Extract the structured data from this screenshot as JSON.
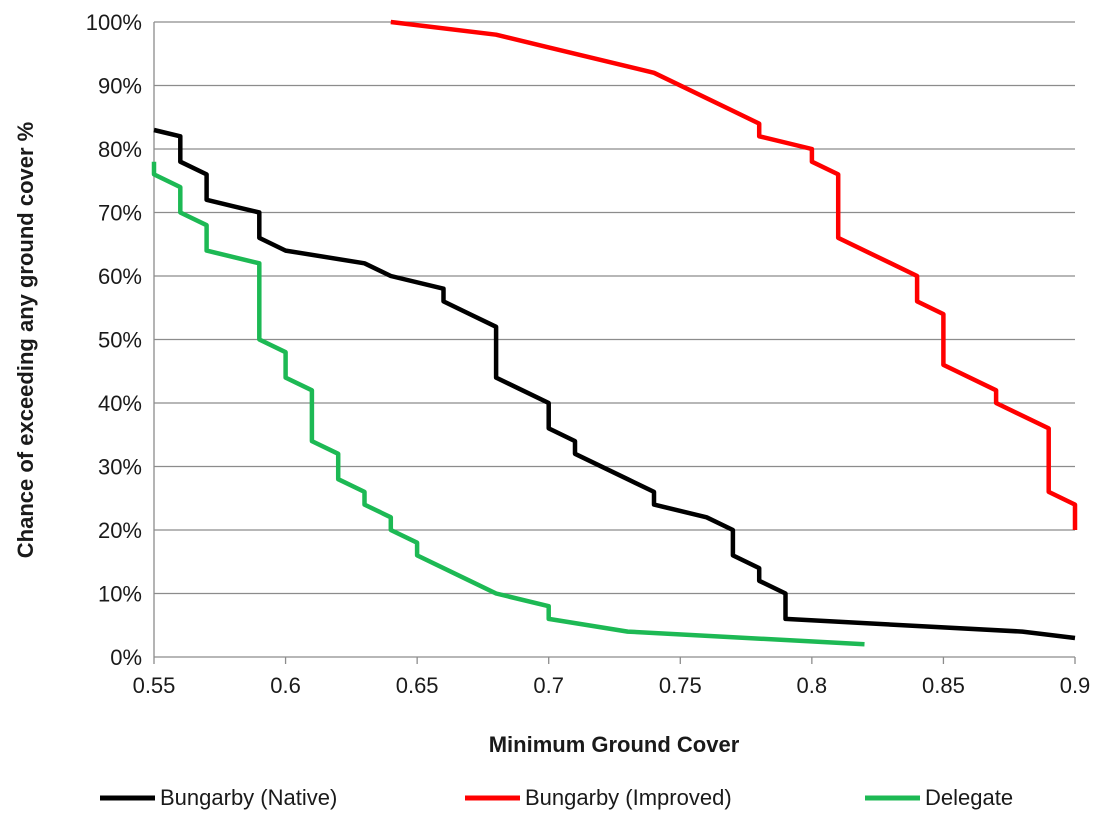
{
  "chart_data": {
    "type": "line",
    "title": "",
    "xlabel": "Minimum Ground Cover",
    "ylabel": "Chance of exceeding any ground cover %",
    "xlim": [
      0.55,
      0.9
    ],
    "ylim": [
      0,
      100
    ],
    "x_ticks": [
      0.55,
      0.6,
      0.65,
      0.7,
      0.75,
      0.8,
      0.85,
      0.9
    ],
    "x_tick_labels": [
      "0.55",
      "0.6",
      "0.65",
      "0.7",
      "0.75",
      "0.8",
      "0.85",
      "0.9"
    ],
    "y_ticks": [
      0,
      10,
      20,
      30,
      40,
      50,
      60,
      70,
      80,
      90,
      100
    ],
    "y_tick_labels": [
      "0%",
      "10%",
      "20%",
      "30%",
      "40%",
      "50%",
      "60%",
      "70%",
      "80%",
      "90%",
      "100%"
    ],
    "grid": "horizontal",
    "legend_position": "bottom",
    "series": [
      {
        "name": "Bungarby (Native)",
        "color": "#000000",
        "points": [
          [
            0.55,
            83
          ],
          [
            0.56,
            82
          ],
          [
            0.56,
            78
          ],
          [
            0.57,
            76
          ],
          [
            0.57,
            72
          ],
          [
            0.58,
            71
          ],
          [
            0.59,
            70
          ],
          [
            0.59,
            66
          ],
          [
            0.6,
            64
          ],
          [
            0.63,
            62
          ],
          [
            0.64,
            60
          ],
          [
            0.66,
            58
          ],
          [
            0.66,
            56
          ],
          [
            0.67,
            54
          ],
          [
            0.68,
            52
          ],
          [
            0.68,
            44
          ],
          [
            0.69,
            42
          ],
          [
            0.7,
            40
          ],
          [
            0.7,
            36
          ],
          [
            0.71,
            34
          ],
          [
            0.71,
            32
          ],
          [
            0.73,
            28
          ],
          [
            0.74,
            26
          ],
          [
            0.74,
            24
          ],
          [
            0.75,
            23
          ],
          [
            0.76,
            22
          ],
          [
            0.77,
            20
          ],
          [
            0.77,
            16
          ],
          [
            0.78,
            14
          ],
          [
            0.78,
            12
          ],
          [
            0.79,
            10
          ],
          [
            0.79,
            6
          ],
          [
            0.88,
            4
          ],
          [
            0.9,
            3
          ]
        ]
      },
      {
        "name": "Bungarby (Improved)",
        "color": "#ff0000",
        "points": [
          [
            0.64,
            100
          ],
          [
            0.68,
            98
          ],
          [
            0.7,
            96
          ],
          [
            0.74,
            92
          ],
          [
            0.77,
            86
          ],
          [
            0.78,
            84
          ],
          [
            0.78,
            82
          ],
          [
            0.8,
            80
          ],
          [
            0.8,
            78
          ],
          [
            0.81,
            76
          ],
          [
            0.81,
            66
          ],
          [
            0.84,
            60
          ],
          [
            0.84,
            56
          ],
          [
            0.85,
            54
          ],
          [
            0.85,
            46
          ],
          [
            0.87,
            42
          ],
          [
            0.87,
            40
          ],
          [
            0.89,
            36
          ],
          [
            0.89,
            26
          ],
          [
            0.9,
            24
          ],
          [
            0.9,
            20
          ]
        ]
      },
      {
        "name": "Delegate",
        "color": "#1db954",
        "points": [
          [
            0.55,
            78
          ],
          [
            0.55,
            76
          ],
          [
            0.56,
            74
          ],
          [
            0.56,
            70
          ],
          [
            0.57,
            68
          ],
          [
            0.57,
            64
          ],
          [
            0.59,
            62
          ],
          [
            0.59,
            50
          ],
          [
            0.6,
            48
          ],
          [
            0.6,
            44
          ],
          [
            0.61,
            42
          ],
          [
            0.61,
            34
          ],
          [
            0.62,
            32
          ],
          [
            0.62,
            28
          ],
          [
            0.63,
            26
          ],
          [
            0.63,
            24
          ],
          [
            0.64,
            22
          ],
          [
            0.64,
            20
          ],
          [
            0.65,
            18
          ],
          [
            0.65,
            16
          ],
          [
            0.67,
            12
          ],
          [
            0.68,
            10
          ],
          [
            0.7,
            8
          ],
          [
            0.7,
            6
          ],
          [
            0.73,
            4
          ],
          [
            0.82,
            2
          ]
        ]
      }
    ]
  }
}
